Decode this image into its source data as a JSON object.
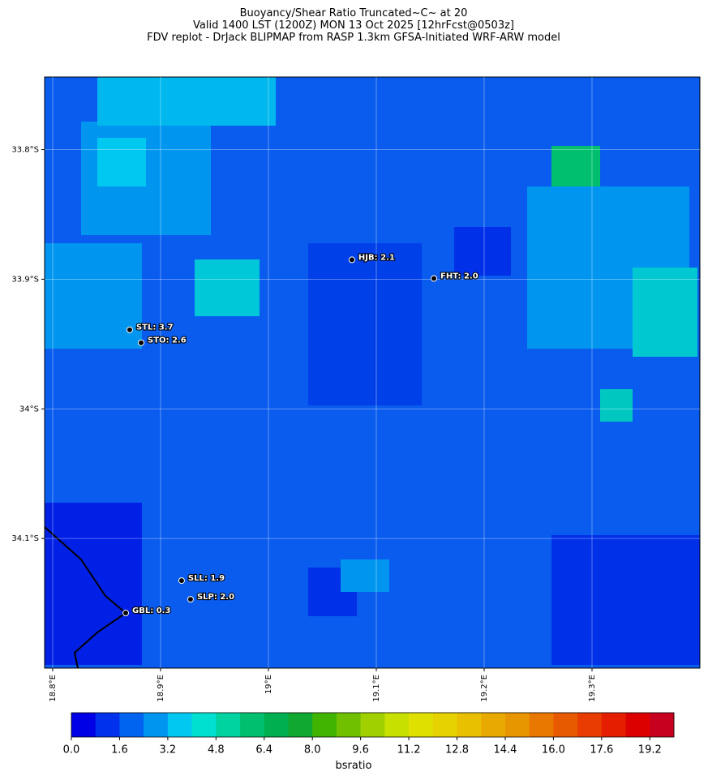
{
  "chart_data": {
    "type": "map",
    "title": [
      "Buoyancy/Shear Ratio Truncated~C~    at 20",
      "Valid 1400 LST (1200Z) MON 13 Oct 2025 [12hrFcst@0503z]",
      "FDV replot - DrJack BLIPMAP from RASP 1.3km GFSA-Initiated WRF-ARW model"
    ],
    "xlim": [
      18.7925,
      19.4
    ],
    "ylim": [
      -34.2,
      -33.744
    ],
    "xticks": [
      {
        "value": 18.8,
        "label": "18.8°E"
      },
      {
        "value": 18.9,
        "label": "18.9°E"
      },
      {
        "value": 19.0,
        "label": "19°E"
      },
      {
        "value": 19.1,
        "label": "19.1°E"
      },
      {
        "value": 19.2,
        "label": "19.2°E"
      },
      {
        "value": 19.3,
        "label": "19.3°E"
      }
    ],
    "yticks": [
      {
        "value": -33.8,
        "label": "33.8°S"
      },
      {
        "value": -33.9,
        "label": "33.9°S"
      },
      {
        "value": -34.0,
        "label": "34°S"
      },
      {
        "value": -34.1,
        "label": "34.1°S"
      }
    ],
    "grid": true,
    "stations": [
      {
        "label": "HJB: 2.1",
        "lon": 19.0774,
        "lat": -33.885
      },
      {
        "label": "FHT: 2.0",
        "lon": 19.1534,
        "lat": -33.8994
      },
      {
        "label": "STL: 3.7",
        "lon": 18.8714,
        "lat": -33.939
      },
      {
        "label": "STO: 2.6",
        "lon": 18.882,
        "lat": -33.949
      },
      {
        "label": "SLL: 1.9",
        "lon": 18.9195,
        "lat": -34.1325
      },
      {
        "label": "SLP: 2.0",
        "lon": 18.9278,
        "lat": -34.1469
      },
      {
        "label": "GBL: 0.3",
        "lon": 18.8677,
        "lat": -34.1575
      }
    ],
    "colorbar": {
      "label": "bsratio",
      "lim": [
        0,
        20
      ],
      "colors": [
        "#0000e6",
        "#0032ee",
        "#0064f0",
        "#0096f0",
        "#00c8f0",
        "#00e0d0",
        "#00d2a0",
        "#00c070",
        "#00b050",
        "#10a830",
        "#40b400",
        "#70c000",
        "#a0d000",
        "#c8e000",
        "#e0e000",
        "#e6d200",
        "#e8c000",
        "#e8aa00",
        "#e89600",
        "#e87800",
        "#e85a00",
        "#e83c00",
        "#e61e00",
        "#dc0000",
        "#c80020"
      ],
      "ticks": [
        {
          "value": 0,
          "label": "0.0"
        },
        1.6,
        3.2,
        4.8,
        6.4,
        {
          "value": 8,
          "label": "8.0"
        },
        9.6,
        11.2,
        12.8,
        14.4,
        {
          "value": 16,
          "label": "16.0"
        },
        17.6,
        19.2
      ]
    }
  }
}
